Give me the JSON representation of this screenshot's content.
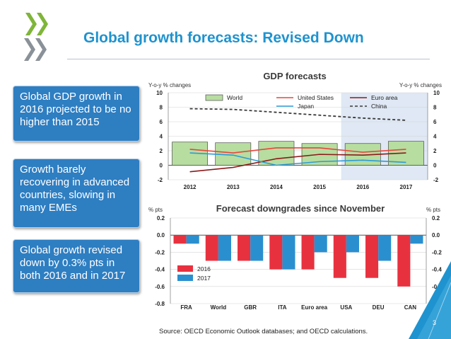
{
  "slide": {
    "title": "Global growth forecasts: Revised Down",
    "callouts": [
      "Global GDP growth in 2016 projected to be no higher than 2015",
      "Growth barely recovering in advanced countries, slowing in many EMEs",
      "Global growth revised down by 0.3% pts in both 2016 and in 2017"
    ],
    "source": "Source: OECD Economic Outlook databases; and OECD calculations.",
    "page_number": "3",
    "colors": {
      "title": "#1e93cf",
      "callout_bg": "#2e7ec2",
      "brand_green": "#7fb539"
    }
  },
  "chart_data": [
    {
      "type": "bar",
      "title": "GDP forecasts",
      "ylabel_left": "Y-o-y % changes",
      "ylabel_right": "Y-o-y % changes",
      "categories": [
        "2012",
        "2013",
        "2014",
        "2015",
        "2016",
        "2017"
      ],
      "ylim": [
        -2,
        10
      ],
      "yticks": [
        "10",
        "8",
        "6",
        "4",
        "2",
        "0",
        "-2"
      ],
      "forecast_shading_from": "2016",
      "series": [
        {
          "name": "World",
          "kind": "bar",
          "color": "#b7dda0",
          "values": [
            3.2,
            3.1,
            3.3,
            3.0,
            3.0,
            3.3
          ]
        },
        {
          "name": "United States",
          "kind": "line",
          "color": "#e8453c",
          "values": [
            2.2,
            1.7,
            2.4,
            2.4,
            1.8,
            2.2
          ]
        },
        {
          "name": "Euro area",
          "kind": "line",
          "color": "#8c1a1a",
          "values": [
            -0.9,
            -0.3,
            0.9,
            1.5,
            1.4,
            1.7
          ]
        },
        {
          "name": "Japan",
          "kind": "line",
          "color": "#2e9bd6",
          "values": [
            1.7,
            1.4,
            0.0,
            0.5,
            0.7,
            0.4
          ]
        },
        {
          "name": "China",
          "kind": "dashed",
          "color": "#3a3a3a",
          "values": [
            7.8,
            7.7,
            7.3,
            6.9,
            6.5,
            6.2
          ]
        }
      ]
    },
    {
      "type": "bar",
      "title": "Forecast downgrades since November",
      "ylabel_left": "% pts",
      "ylabel_right": "% pts",
      "categories": [
        "FRA",
        "World",
        "GBR",
        "ITA",
        "Euro area",
        "USA",
        "DEU",
        "CAN"
      ],
      "ylim": [
        -0.8,
        0.2
      ],
      "yticks": [
        "0.2",
        "0.0",
        "-0.2",
        "-0.4",
        "-0.6",
        "-0.8"
      ],
      "series": [
        {
          "name": "2016",
          "color": "#e8313f",
          "values": [
            -0.1,
            -0.3,
            -0.3,
            -0.4,
            -0.4,
            -0.5,
            -0.5,
            -0.6
          ]
        },
        {
          "name": "2017",
          "color": "#2a8fcf",
          "values": [
            -0.1,
            -0.3,
            -0.3,
            -0.4,
            -0.2,
            -0.2,
            -0.3,
            -0.1
          ]
        }
      ]
    }
  ]
}
